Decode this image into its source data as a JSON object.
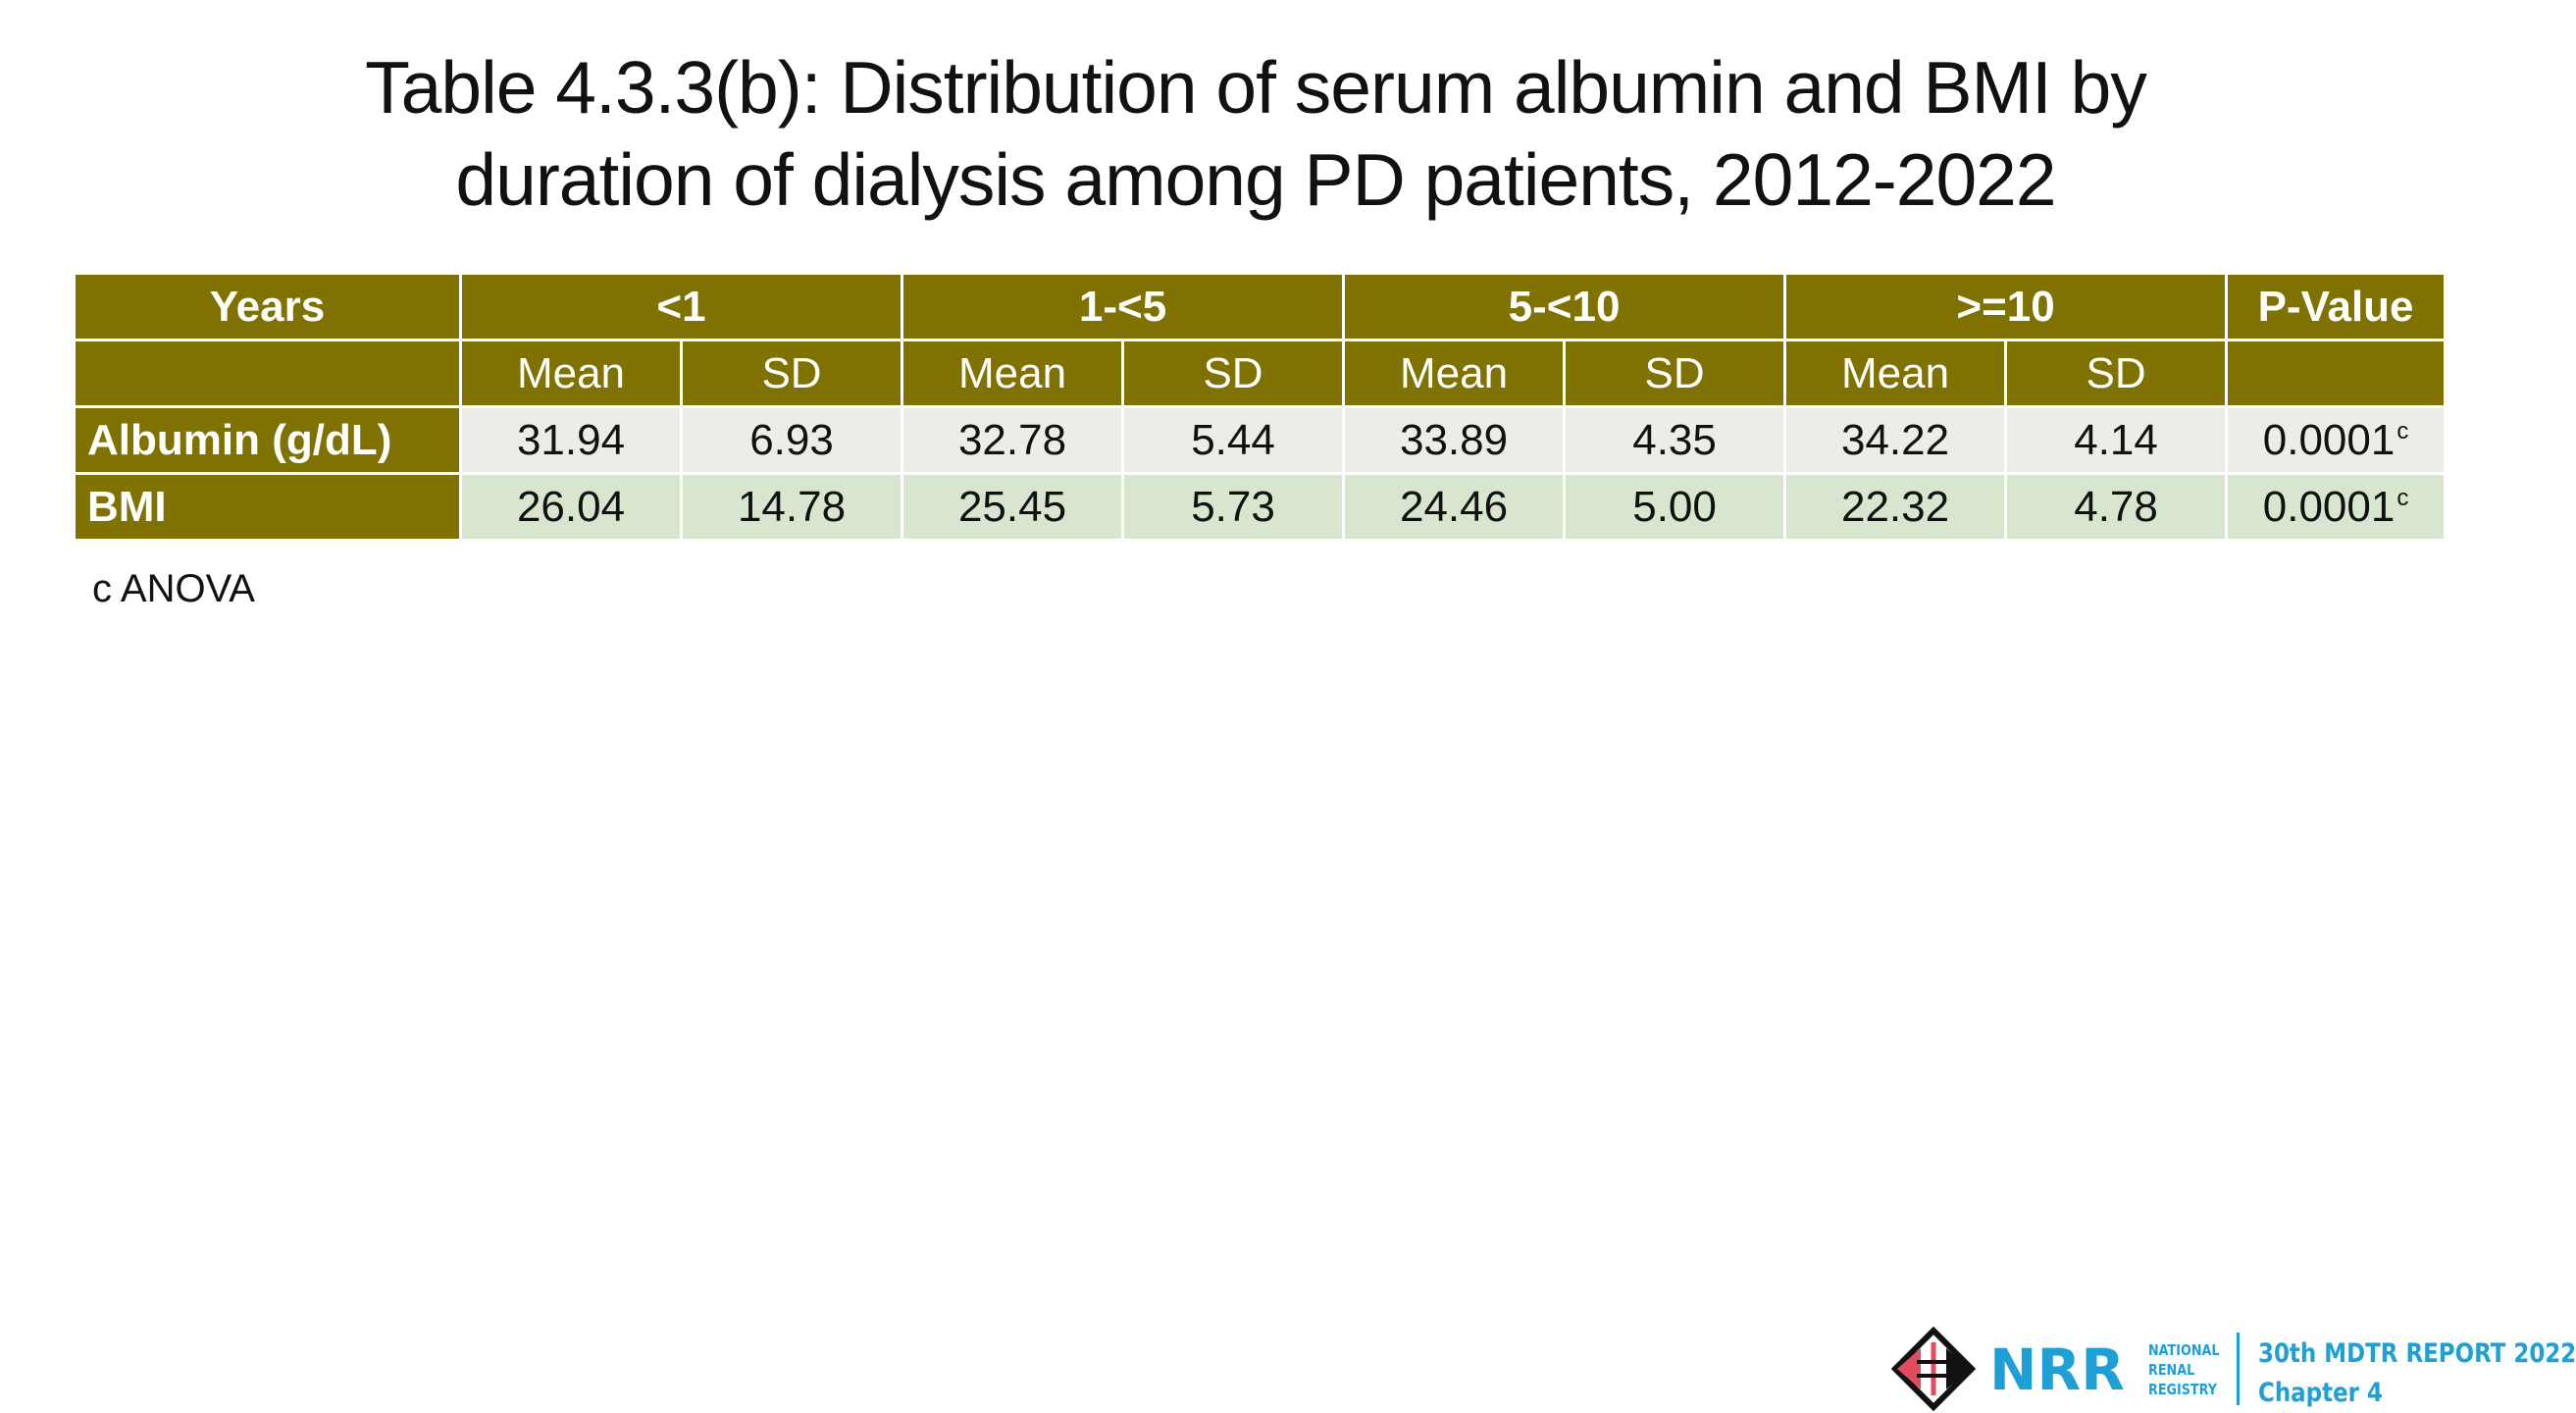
{
  "title": {
    "line1": "Table 4.3.3(b): Distribution of serum albumin and BMI by",
    "line2": "duration of dialysis among PD patients, 2012-2022"
  },
  "table": {
    "header": {
      "years": "Years",
      "groups": [
        "<1",
        "1-<5",
        "5-<10",
        ">=10"
      ],
      "pvalue": "P-Value"
    },
    "subheader": {
      "mean": "Mean",
      "sd": "SD"
    },
    "rows": [
      {
        "label": "Albumin (g/dL)",
        "values": [
          "31.94",
          "6.93",
          "32.78",
          "5.44",
          "33.89",
          "4.35",
          "34.22",
          "4.14"
        ],
        "pvalue": "0.0001",
        "pvalue_sup": "c"
      },
      {
        "label": "BMI",
        "values": [
          "26.04",
          "14.78",
          "25.45",
          "5.73",
          "24.46",
          "5.00",
          "22.32",
          "4.78"
        ],
        "pvalue": "0.0001",
        "pvalue_sup": "c"
      }
    ]
  },
  "footnote": "c ANOVA",
  "footer": {
    "logo_text": "NRR",
    "registry_lines": [
      "NATIONAL",
      "RENAL",
      "REGISTRY"
    ],
    "report": "30th MDTR REPORT 2022",
    "chapter": "Chapter 4"
  },
  "colors": {
    "header_bg": "#7f7200",
    "row_light": "#ebeee6",
    "row_green": "#d8e6cf",
    "brand_blue": "#1ea0d6"
  }
}
